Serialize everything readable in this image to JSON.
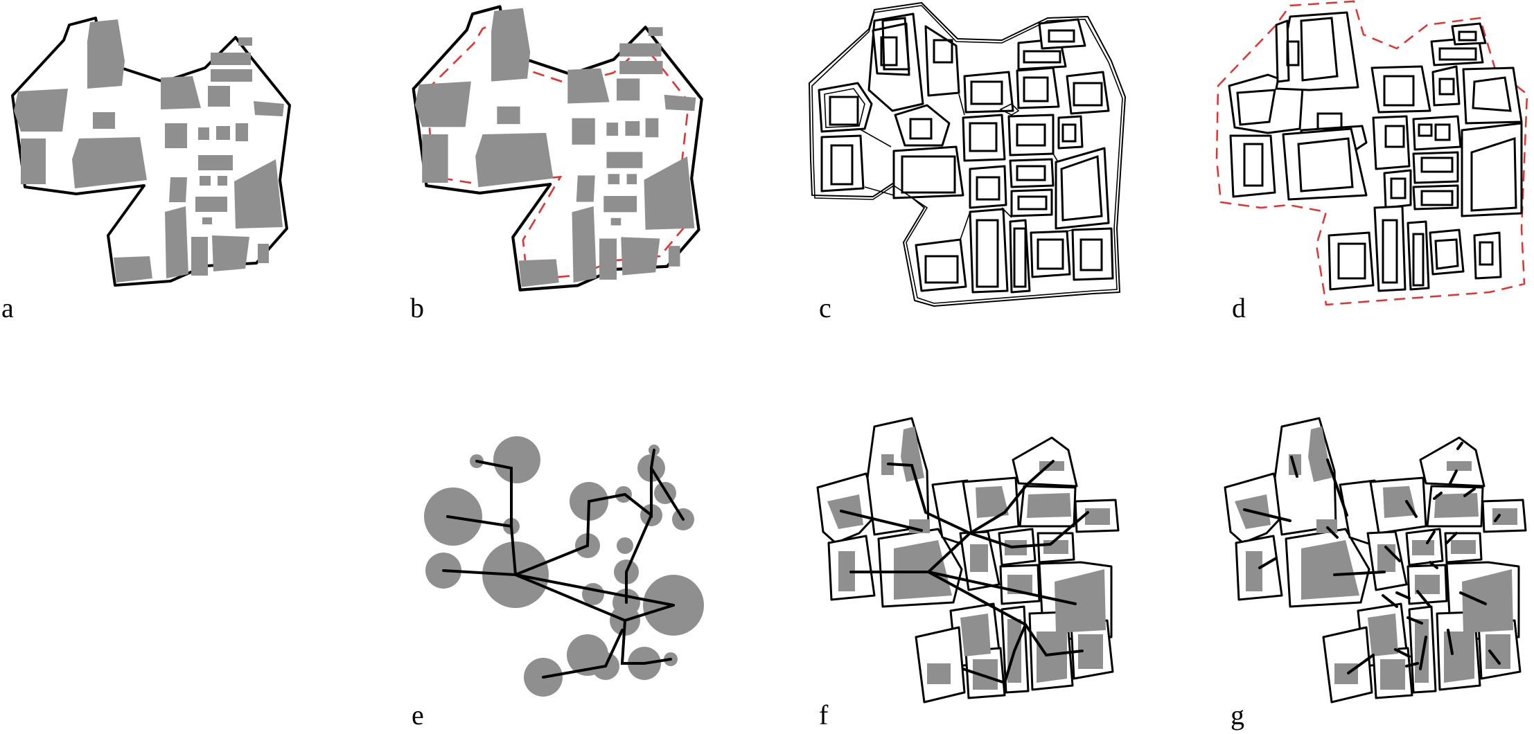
{
  "figure": {
    "panels": [
      {
        "id": "a",
        "label": "a"
      },
      {
        "id": "b",
        "label": "b"
      },
      {
        "id": "c",
        "label": "c"
      },
      {
        "id": "d",
        "label": "d"
      },
      {
        "id": "e",
        "label": "e"
      },
      {
        "id": "f",
        "label": "f"
      },
      {
        "id": "g",
        "label": "g"
      }
    ],
    "colors": {
      "building": "#8f8f8f",
      "outline": "#000000",
      "buffer_dash": "#e53030",
      "background": "#ffffff"
    }
  }
}
